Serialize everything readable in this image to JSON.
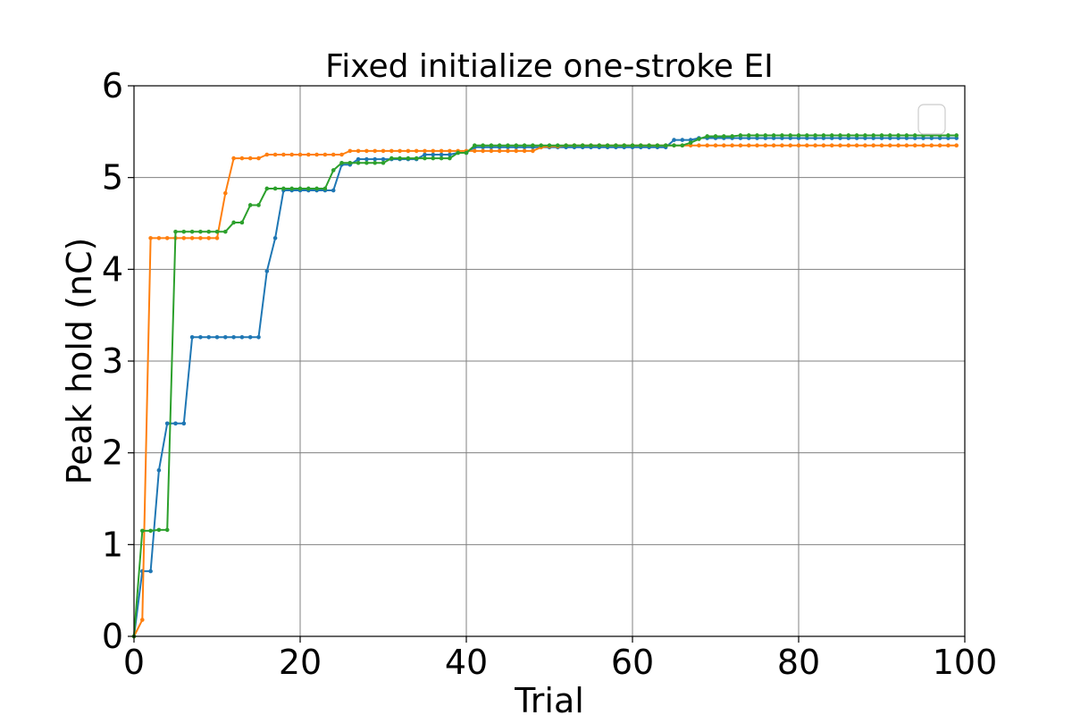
{
  "chart_data": {
    "type": "line",
    "title": "Fixed initialize one-stroke EI",
    "xlabel": "Trial",
    "ylabel": "Peak hold (nC)",
    "xlim": [
      0,
      100
    ],
    "ylim": [
      0,
      6
    ],
    "xticks": [
      0,
      20,
      40,
      60,
      80,
      100
    ],
    "yticks": [
      0,
      1,
      2,
      3,
      4,
      5,
      6
    ],
    "xtick_labels": [
      "0",
      "20",
      "40",
      "60",
      "80",
      "100"
    ],
    "ytick_labels": [
      "0",
      "1",
      "2",
      "3",
      "4",
      "5",
      "6"
    ],
    "grid": true,
    "legend": "upper right, empty",
    "marker": "dot",
    "series": [
      {
        "color": "#1f77b4",
        "x": [
          0,
          1,
          2,
          3,
          4,
          5,
          6,
          7,
          8,
          9,
          10,
          11,
          12,
          13,
          14,
          15,
          16,
          17,
          18,
          19,
          20,
          21,
          22,
          23,
          24,
          25,
          26,
          27,
          28,
          29,
          30,
          31,
          32,
          33,
          34,
          35,
          36,
          37,
          38,
          39,
          40,
          41,
          42,
          43,
          44,
          45,
          46,
          47,
          48,
          49,
          50,
          51,
          52,
          53,
          54,
          55,
          56,
          57,
          58,
          59,
          60,
          61,
          62,
          63,
          64,
          65,
          66,
          67,
          68,
          69,
          70,
          71,
          72,
          73,
          74,
          75,
          76,
          77,
          78,
          79,
          80,
          81,
          82,
          83,
          84,
          85,
          86,
          87,
          88,
          89,
          90,
          91,
          92,
          93,
          94,
          95,
          96,
          97,
          98,
          99
        ],
        "y": [
          0,
          0.71,
          0.71,
          1.81,
          2.32,
          2.32,
          2.32,
          3.26,
          3.26,
          3.26,
          3.26,
          3.26,
          3.26,
          3.26,
          3.26,
          3.26,
          3.98,
          4.34,
          4.86,
          4.86,
          4.86,
          4.86,
          4.86,
          4.86,
          4.86,
          5.14,
          5.14,
          5.2,
          5.2,
          5.2,
          5.2,
          5.2,
          5.2,
          5.2,
          5.2,
          5.25,
          5.25,
          5.25,
          5.25,
          5.27,
          5.27,
          5.33,
          5.33,
          5.33,
          5.33,
          5.33,
          5.33,
          5.33,
          5.33,
          5.33,
          5.33,
          5.33,
          5.33,
          5.33,
          5.33,
          5.33,
          5.33,
          5.33,
          5.33,
          5.33,
          5.33,
          5.33,
          5.33,
          5.33,
          5.33,
          5.41,
          5.41,
          5.41,
          5.43,
          5.43,
          5.43,
          5.43,
          5.43,
          5.43,
          5.43,
          5.43,
          5.43,
          5.43,
          5.43,
          5.43,
          5.43,
          5.43,
          5.43,
          5.43,
          5.43,
          5.43,
          5.43,
          5.43,
          5.43,
          5.43,
          5.43,
          5.43,
          5.43,
          5.43,
          5.43,
          5.43,
          5.43,
          5.43,
          5.43,
          5.43
        ]
      },
      {
        "color": "#ff7f0e",
        "x": [
          0,
          1,
          2,
          3,
          4,
          5,
          6,
          7,
          8,
          9,
          10,
          11,
          12,
          13,
          14,
          15,
          16,
          17,
          18,
          19,
          20,
          21,
          22,
          23,
          24,
          25,
          26,
          27,
          28,
          29,
          30,
          31,
          32,
          33,
          34,
          35,
          36,
          37,
          38,
          39,
          40,
          41,
          42,
          43,
          44,
          45,
          46,
          47,
          48,
          49,
          50,
          51,
          52,
          53,
          54,
          55,
          56,
          57,
          58,
          59,
          60,
          61,
          62,
          63,
          64,
          65,
          66,
          67,
          68,
          69,
          70,
          71,
          72,
          73,
          74,
          75,
          76,
          77,
          78,
          79,
          80,
          81,
          82,
          83,
          84,
          85,
          86,
          87,
          88,
          89,
          90,
          91,
          92,
          93,
          94,
          95,
          96,
          97,
          98,
          99
        ],
        "y": [
          0,
          0.18,
          4.34,
          4.34,
          4.34,
          4.34,
          4.34,
          4.34,
          4.34,
          4.34,
          4.34,
          4.83,
          5.21,
          5.21,
          5.21,
          5.21,
          5.25,
          5.25,
          5.25,
          5.25,
          5.25,
          5.25,
          5.25,
          5.25,
          5.25,
          5.25,
          5.29,
          5.29,
          5.29,
          5.29,
          5.29,
          5.29,
          5.29,
          5.29,
          5.29,
          5.29,
          5.29,
          5.29,
          5.29,
          5.29,
          5.29,
          5.29,
          5.29,
          5.29,
          5.29,
          5.29,
          5.29,
          5.29,
          5.29,
          5.33,
          5.34,
          5.34,
          5.35,
          5.35,
          5.35,
          5.35,
          5.35,
          5.35,
          5.35,
          5.35,
          5.35,
          5.35,
          5.35,
          5.35,
          5.35,
          5.35,
          5.35,
          5.35,
          5.35,
          5.35,
          5.35,
          5.35,
          5.35,
          5.35,
          5.35,
          5.35,
          5.35,
          5.35,
          5.35,
          5.35,
          5.35,
          5.35,
          5.35,
          5.35,
          5.35,
          5.35,
          5.35,
          5.35,
          5.35,
          5.35,
          5.35,
          5.35,
          5.35,
          5.35,
          5.35,
          5.35,
          5.35,
          5.35,
          5.35,
          5.35
        ]
      },
      {
        "color": "#2ca02c",
        "x": [
          0,
          1,
          2,
          3,
          4,
          5,
          6,
          7,
          8,
          9,
          10,
          11,
          12,
          13,
          14,
          15,
          16,
          17,
          18,
          19,
          20,
          21,
          22,
          23,
          24,
          25,
          26,
          27,
          28,
          29,
          30,
          31,
          32,
          33,
          34,
          35,
          36,
          37,
          38,
          39,
          40,
          41,
          42,
          43,
          44,
          45,
          46,
          47,
          48,
          49,
          50,
          51,
          52,
          53,
          54,
          55,
          56,
          57,
          58,
          59,
          60,
          61,
          62,
          63,
          64,
          65,
          66,
          67,
          68,
          69,
          70,
          71,
          72,
          73,
          74,
          75,
          76,
          77,
          78,
          79,
          80,
          81,
          82,
          83,
          84,
          85,
          86,
          87,
          88,
          89,
          90,
          91,
          92,
          93,
          94,
          95,
          96,
          97,
          98,
          99
        ],
        "y": [
          0,
          1.15,
          1.15,
          1.16,
          1.16,
          4.41,
          4.41,
          4.41,
          4.41,
          4.41,
          4.41,
          4.41,
          4.51,
          4.51,
          4.7,
          4.7,
          4.88,
          4.88,
          4.88,
          4.88,
          4.88,
          4.88,
          4.88,
          4.88,
          5.08,
          5.16,
          5.16,
          5.16,
          5.16,
          5.16,
          5.16,
          5.21,
          5.21,
          5.21,
          5.21,
          5.21,
          5.21,
          5.21,
          5.21,
          5.27,
          5.27,
          5.35,
          5.35,
          5.35,
          5.35,
          5.35,
          5.35,
          5.35,
          5.35,
          5.35,
          5.35,
          5.35,
          5.35,
          5.35,
          5.35,
          5.35,
          5.35,
          5.35,
          5.35,
          5.35,
          5.35,
          5.35,
          5.35,
          5.35,
          5.35,
          5.35,
          5.35,
          5.38,
          5.42,
          5.45,
          5.45,
          5.45,
          5.45,
          5.46,
          5.46,
          5.46,
          5.46,
          5.46,
          5.46,
          5.46,
          5.46,
          5.46,
          5.46,
          5.46,
          5.46,
          5.46,
          5.46,
          5.46,
          5.46,
          5.46,
          5.46,
          5.46,
          5.46,
          5.46,
          5.46,
          5.46,
          5.46,
          5.46,
          5.46,
          5.46
        ]
      }
    ]
  }
}
